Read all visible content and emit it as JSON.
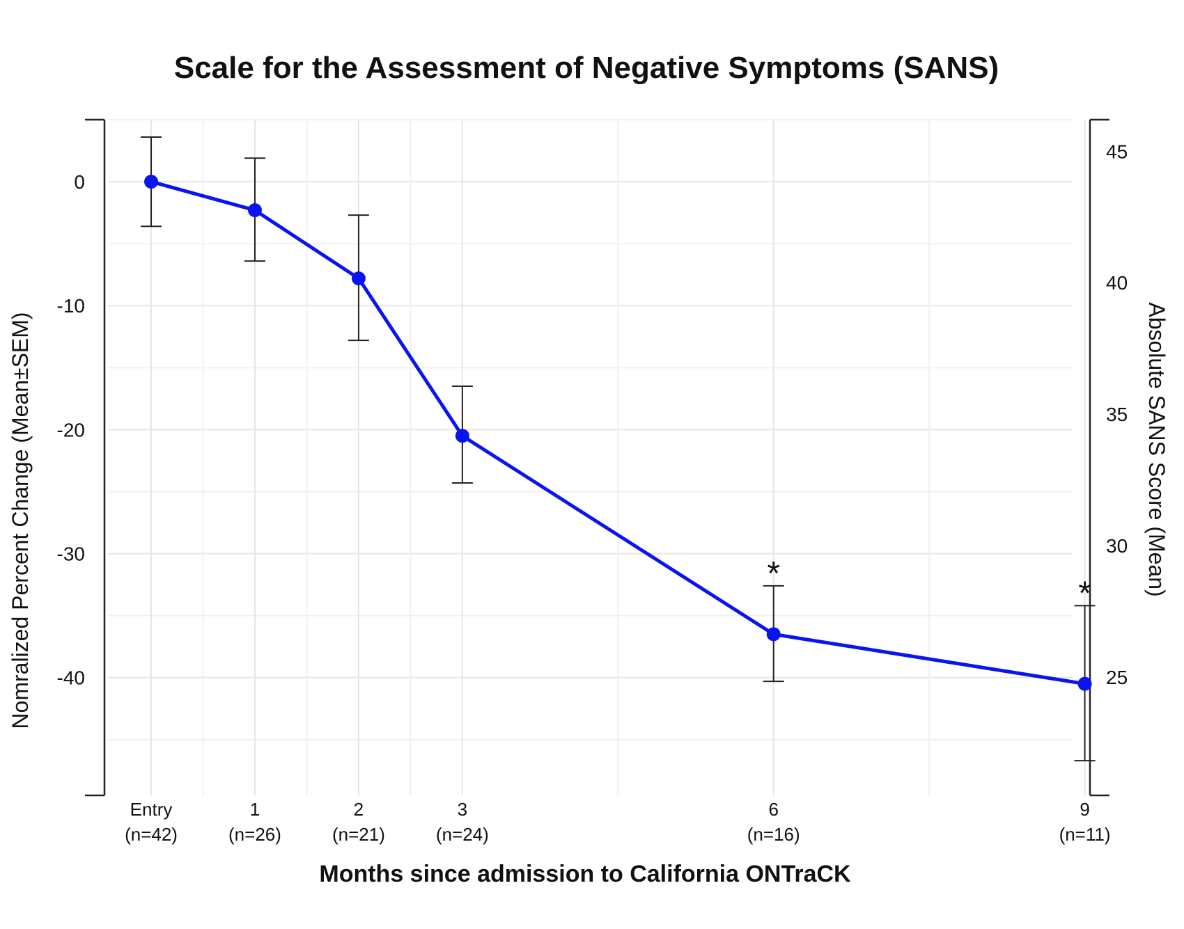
{
  "chart_data": {
    "type": "line",
    "title": "Scale for the Assessment of Negative Symptoms (SANS)",
    "xlabel": "Months since admission to California ONTraCK",
    "ylabel": "Nomralized Percent Change (Mean±SEM)",
    "ylabel_right": "Absolute SANS Score (Mean)",
    "x": [
      0,
      1,
      2,
      3,
      6,
      9
    ],
    "x_labels": [
      "Entry",
      "1",
      "2",
      "3",
      "6",
      "9"
    ],
    "n_labels": [
      "(n=42)",
      "(n=26)",
      "(n=21)",
      "(n=24)",
      "(n=16)",
      "(n=11)"
    ],
    "series": [
      {
        "name": "Normalized Percent Change",
        "color": "#0a14f0",
        "values": [
          0,
          -2.3,
          -7.8,
          -20.5,
          -36.5,
          -40.5
        ],
        "err_upper": [
          3.6,
          1.9,
          -2.7,
          -16.5,
          -32.6,
          -34.2
        ],
        "err_lower": [
          -3.6,
          -6.4,
          -12.8,
          -24.3,
          -40.3,
          -46.7
        ],
        "significant": [
          false,
          false,
          false,
          false,
          true,
          true
        ]
      }
    ],
    "significance_marker": "*",
    "y_ticks": [
      "0",
      "-10",
      "-20",
      "-30",
      "-40"
    ],
    "y_tick_values": [
      0,
      -10,
      -20,
      -30,
      -40
    ],
    "ylim": [
      -49.5,
      5
    ],
    "y_right_ticks": [
      "45",
      "40",
      "35",
      "30",
      "25"
    ],
    "y_right_tick_values": [
      45,
      40,
      35,
      30,
      25
    ],
    "y_right_lim": [
      20.5,
      46.2
    ],
    "xlim": [
      -0.45,
      9.05
    ],
    "x_minor_grid": [
      0.5,
      1.5,
      2.5,
      4.5,
      7.5
    ],
    "grid": true
  }
}
